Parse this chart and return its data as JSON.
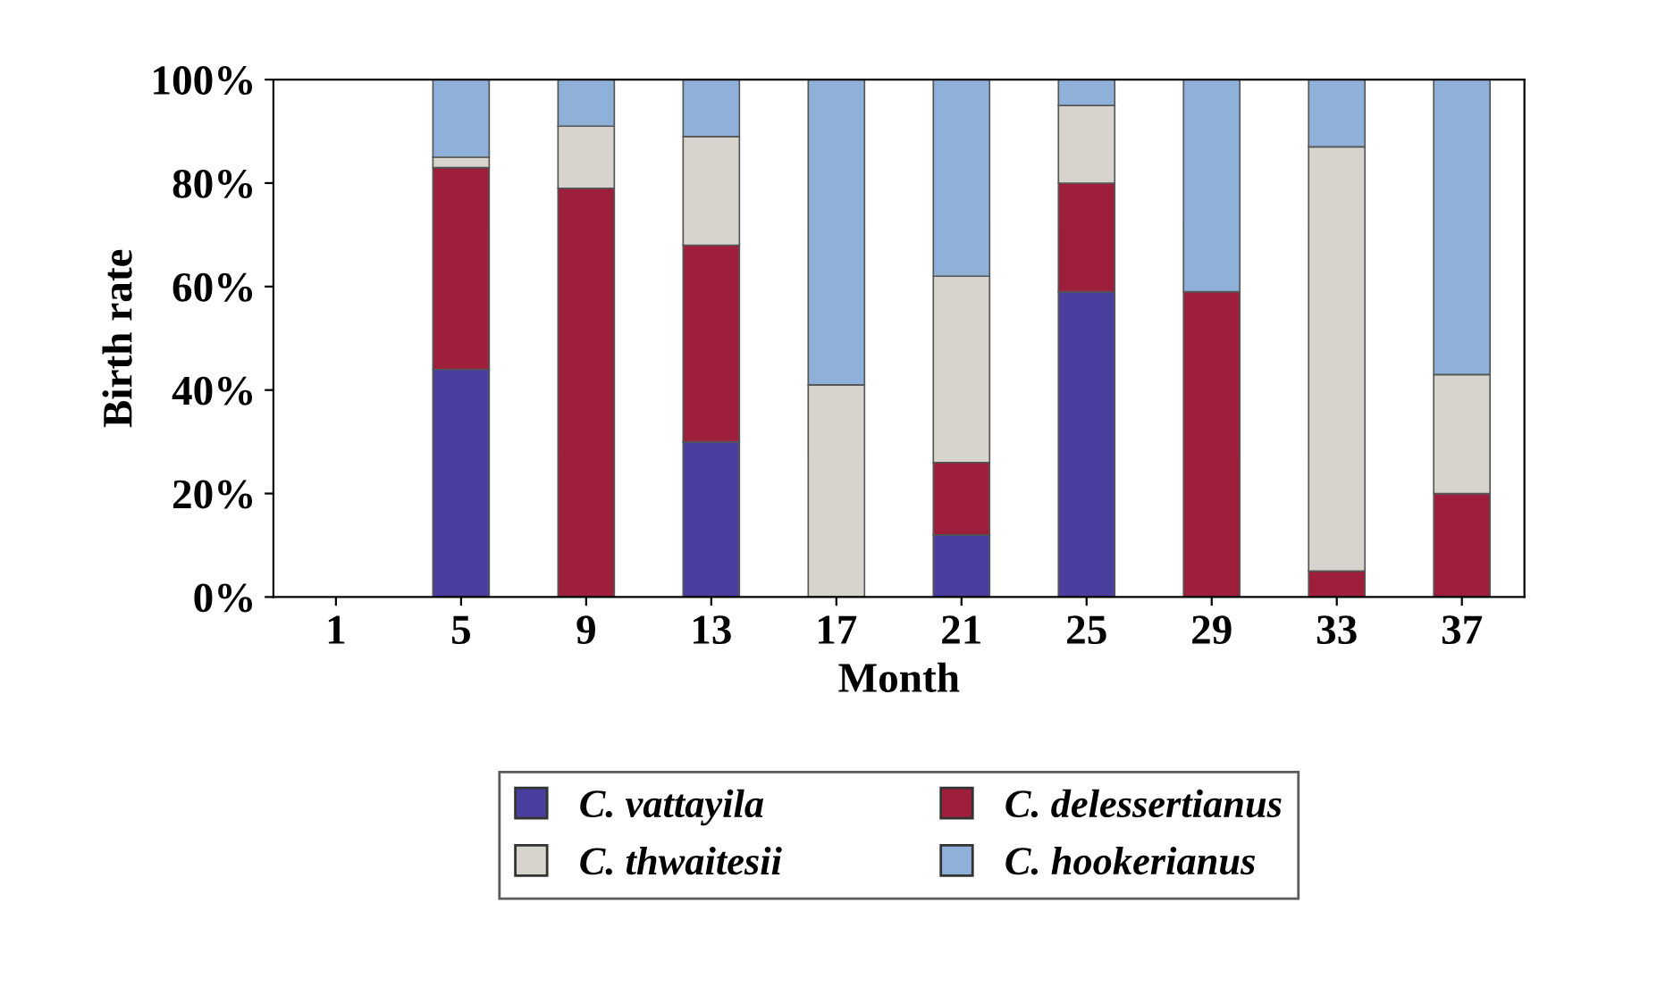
{
  "chart_data": {
    "type": "bar",
    "stacked": true,
    "xlabel": "Month",
    "ylabel": "Birth rate",
    "categories": [
      "1",
      "5",
      "9",
      "13",
      "17",
      "21",
      "25",
      "29",
      "33",
      "37"
    ],
    "series": [
      {
        "name": "C. vattayila",
        "color": "#4a3f9e",
        "values": [
          0,
          44,
          0,
          30,
          0,
          12,
          59,
          0,
          0,
          0
        ]
      },
      {
        "name": "C. delessertianus",
        "color": "#9e1f3c",
        "values": [
          0,
          39,
          79,
          38,
          0,
          14,
          21,
          59,
          5,
          20
        ]
      },
      {
        "name": "C. thwaitesii",
        "color": "#d6d4cc",
        "values": [
          0,
          2,
          12,
          21,
          41,
          36,
          15,
          0,
          82,
          23
        ]
      },
      {
        "name": "C. hookerianus",
        "color": "#8fb0d8",
        "values": [
          0,
          15,
          9,
          11,
          59,
          38,
          5,
          41,
          13,
          57
        ]
      }
    ],
    "ylim": [
      0,
      100
    ],
    "yticks": [
      {
        "value": 0,
        "label": "0%"
      },
      {
        "value": 20,
        "label": "20%"
      },
      {
        "value": 40,
        "label": "40%"
      },
      {
        "value": 60,
        "label": "60%"
      },
      {
        "value": 80,
        "label": "80%"
      },
      {
        "value": 100,
        "label": "100%"
      }
    ],
    "grid": false,
    "legend": "bottom"
  }
}
